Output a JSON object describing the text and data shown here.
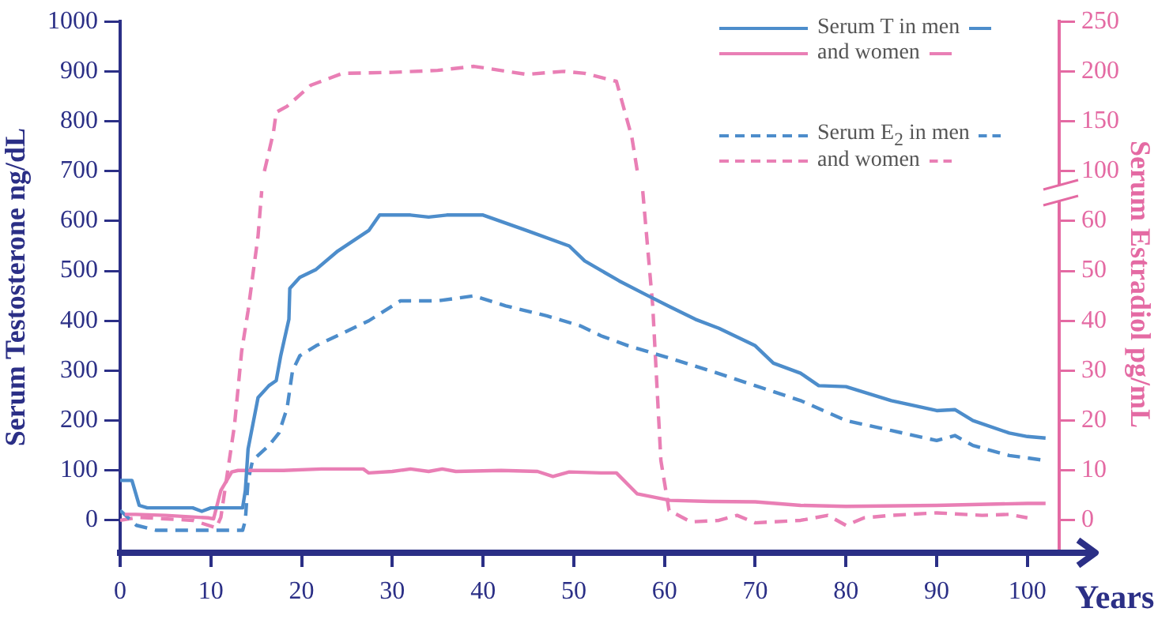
{
  "chart_data": {
    "type": "line",
    "xlabel": "Years",
    "ylabel": "Serum Testosterone ng/dL",
    "y2label": "Serum Estradiol pg/mL",
    "xlim": [
      0,
      103.5
    ],
    "xticks": [
      0,
      10,
      20,
      30,
      40,
      50,
      60,
      70,
      80,
      90,
      100
    ],
    "ylim": [
      -65,
      1000
    ],
    "yticks": [
      0,
      100,
      200,
      300,
      400,
      500,
      600,
      700,
      800,
      900,
      1000
    ],
    "y2lim": [
      -6.5,
      100
    ],
    "y2ticks": [
      0,
      10,
      20,
      30,
      40,
      50,
      60
    ],
    "y3lim": [
      -282.5,
      250
    ],
    "y3ticks": [
      100,
      150,
      200,
      250
    ],
    "legend": "top right",
    "marker": "none",
    "series": [
      {
        "name": "Serum T in men",
        "color": "#4d8dcb",
        "line_style": "solid",
        "x": [
          0,
          1.3,
          2.1,
          3,
          6,
          8,
          9,
          10,
          13.5,
          13.8,
          14.1,
          15.2,
          16.4,
          17.2,
          17.7,
          18.6,
          18.7,
          19.8,
          21.6,
          24,
          27.4,
          28.6,
          32,
          34,
          36,
          40,
          44.8,
          49.5,
          51.2,
          55,
          58.2,
          60.6,
          63.4,
          66,
          70,
          72,
          75,
          77,
          80,
          85,
          90,
          92,
          94,
          98,
          100,
          102
        ],
        "values": [
          80,
          80,
          30,
          25,
          25,
          25,
          18,
          25,
          25,
          60,
          143,
          246,
          270,
          280,
          330,
          403,
          465,
          487,
          503,
          540,
          581,
          612,
          612,
          608,
          612,
          612,
          581,
          550,
          520,
          480,
          450,
          428,
          403,
          385,
          350,
          315,
          295,
          270,
          268,
          240,
          220,
          222,
          200,
          175,
          168,
          165
        ]
      },
      {
        "name": "and women",
        "color": "#e97fb5",
        "line_style": "solid",
        "x": [
          0.5,
          1.7,
          5,
          9.7,
          10.3,
          11.1,
          12.3,
          13,
          18,
          22.2,
          26.8,
          27.4,
          30,
          32,
          34,
          35.5,
          37,
          42,
          46,
          47.7,
          49.5,
          53,
          54.7,
          57,
          60.6,
          65,
          70,
          75,
          80,
          90,
          100,
          102
        ],
        "values": [
          12,
          12,
          10,
          5,
          3,
          60,
          97,
          100,
          100,
          103,
          103,
          95,
          98,
          103,
          98,
          103,
          98,
          100,
          98,
          88,
          97,
          95,
          95,
          53,
          40,
          38,
          37,
          30,
          28,
          30,
          34,
          34
        ]
      },
      {
        "name": "Serum E$_{2}$ in men",
        "color": "#4d8dcb",
        "line_style": "dashed",
        "axis": "y2",
        "x": [
          0,
          1.8,
          4,
          13.5,
          13.8,
          14.1,
          14.6,
          16.4,
          17.5,
          18.4,
          19,
          19.8,
          21.6,
          27.4,
          30.9,
          35,
          39,
          42.5,
          47,
          50.7,
          53,
          56,
          60.6,
          65,
          70,
          75,
          80,
          85,
          90,
          92,
          94,
          98,
          102
        ],
        "values": [
          2,
          -1,
          -2,
          -2,
          0,
          8,
          12,
          15,
          17.5,
          22.5,
          30,
          33,
          35,
          40,
          44,
          44,
          45,
          43,
          41,
          39,
          37,
          35,
          32.5,
          30,
          27,
          24,
          20,
          18,
          16,
          17,
          15,
          13,
          12
        ]
      },
      {
        "name": "and women",
        "color": "#e97fb5",
        "line_style": "dashed",
        "axis": "y2",
        "x": [
          0,
          2,
          8,
          10.6,
          11.1,
          11.7,
          12.6,
          13.4,
          14.1,
          15.2,
          15.6,
          36,
          57.6,
          58.7,
          59.6,
          60.5,
          62.9,
          66,
          68,
          70,
          75,
          78,
          80,
          82,
          85,
          90,
          95,
          98,
          100
        ],
        "values": [
          0,
          0.6,
          0,
          -1.5,
          0.6,
          8,
          19,
          34,
          42,
          57,
          66,
          null,
          66,
          43,
          12,
          2,
          -0.3,
          0,
          1,
          -0.5,
          0,
          1,
          -1,
          0.5,
          1,
          1.5,
          1,
          1.2,
          0.5
        ]
      },
      {
        "color": "#e97fb5",
        "line_style": "dashed",
        "axis": "y3",
        "x": [
          15.9,
          16.9,
          17.2,
          18.4,
          21,
          24.5,
          30,
          35,
          39,
          44.8,
          48.9,
          51.2,
          54.7,
          56.4,
          57
        ],
        "values": [
          100,
          139,
          159,
          165,
          186,
          198,
          199,
          201,
          205,
          197,
          200,
          198,
          190,
          134,
          100
        ]
      }
    ]
  }
}
